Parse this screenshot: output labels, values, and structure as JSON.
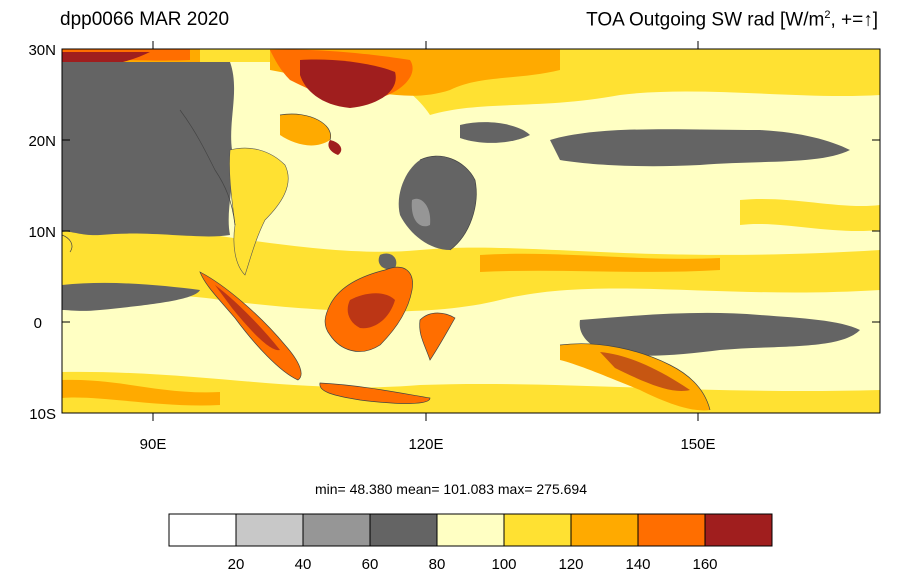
{
  "title_left": "dpp0066 MAR 2020",
  "title_right_main": "TOA Outgoing SW rad [W/m",
  "title_right_sup": "2",
  "title_right_tail": ", +=↑]",
  "lat_labels": [
    "30N",
    "20N",
    "10N",
    "0",
    "10S"
  ],
  "lon_labels": [
    "90E",
    "120E",
    "150E"
  ],
  "stats_text": "min=  48.380   mean= 101.083   max= 275.694",
  "colorbar": {
    "ticks": [
      "20",
      "40",
      "60",
      "80",
      "100",
      "120",
      "140",
      "160"
    ],
    "colors": [
      "#ffffff",
      "#c8c8c8",
      "#969696",
      "#646464",
      "#ffffc3",
      "#ffe132",
      "#ffaa00",
      "#ff6e00",
      "#a01e1e"
    ]
  }
}
